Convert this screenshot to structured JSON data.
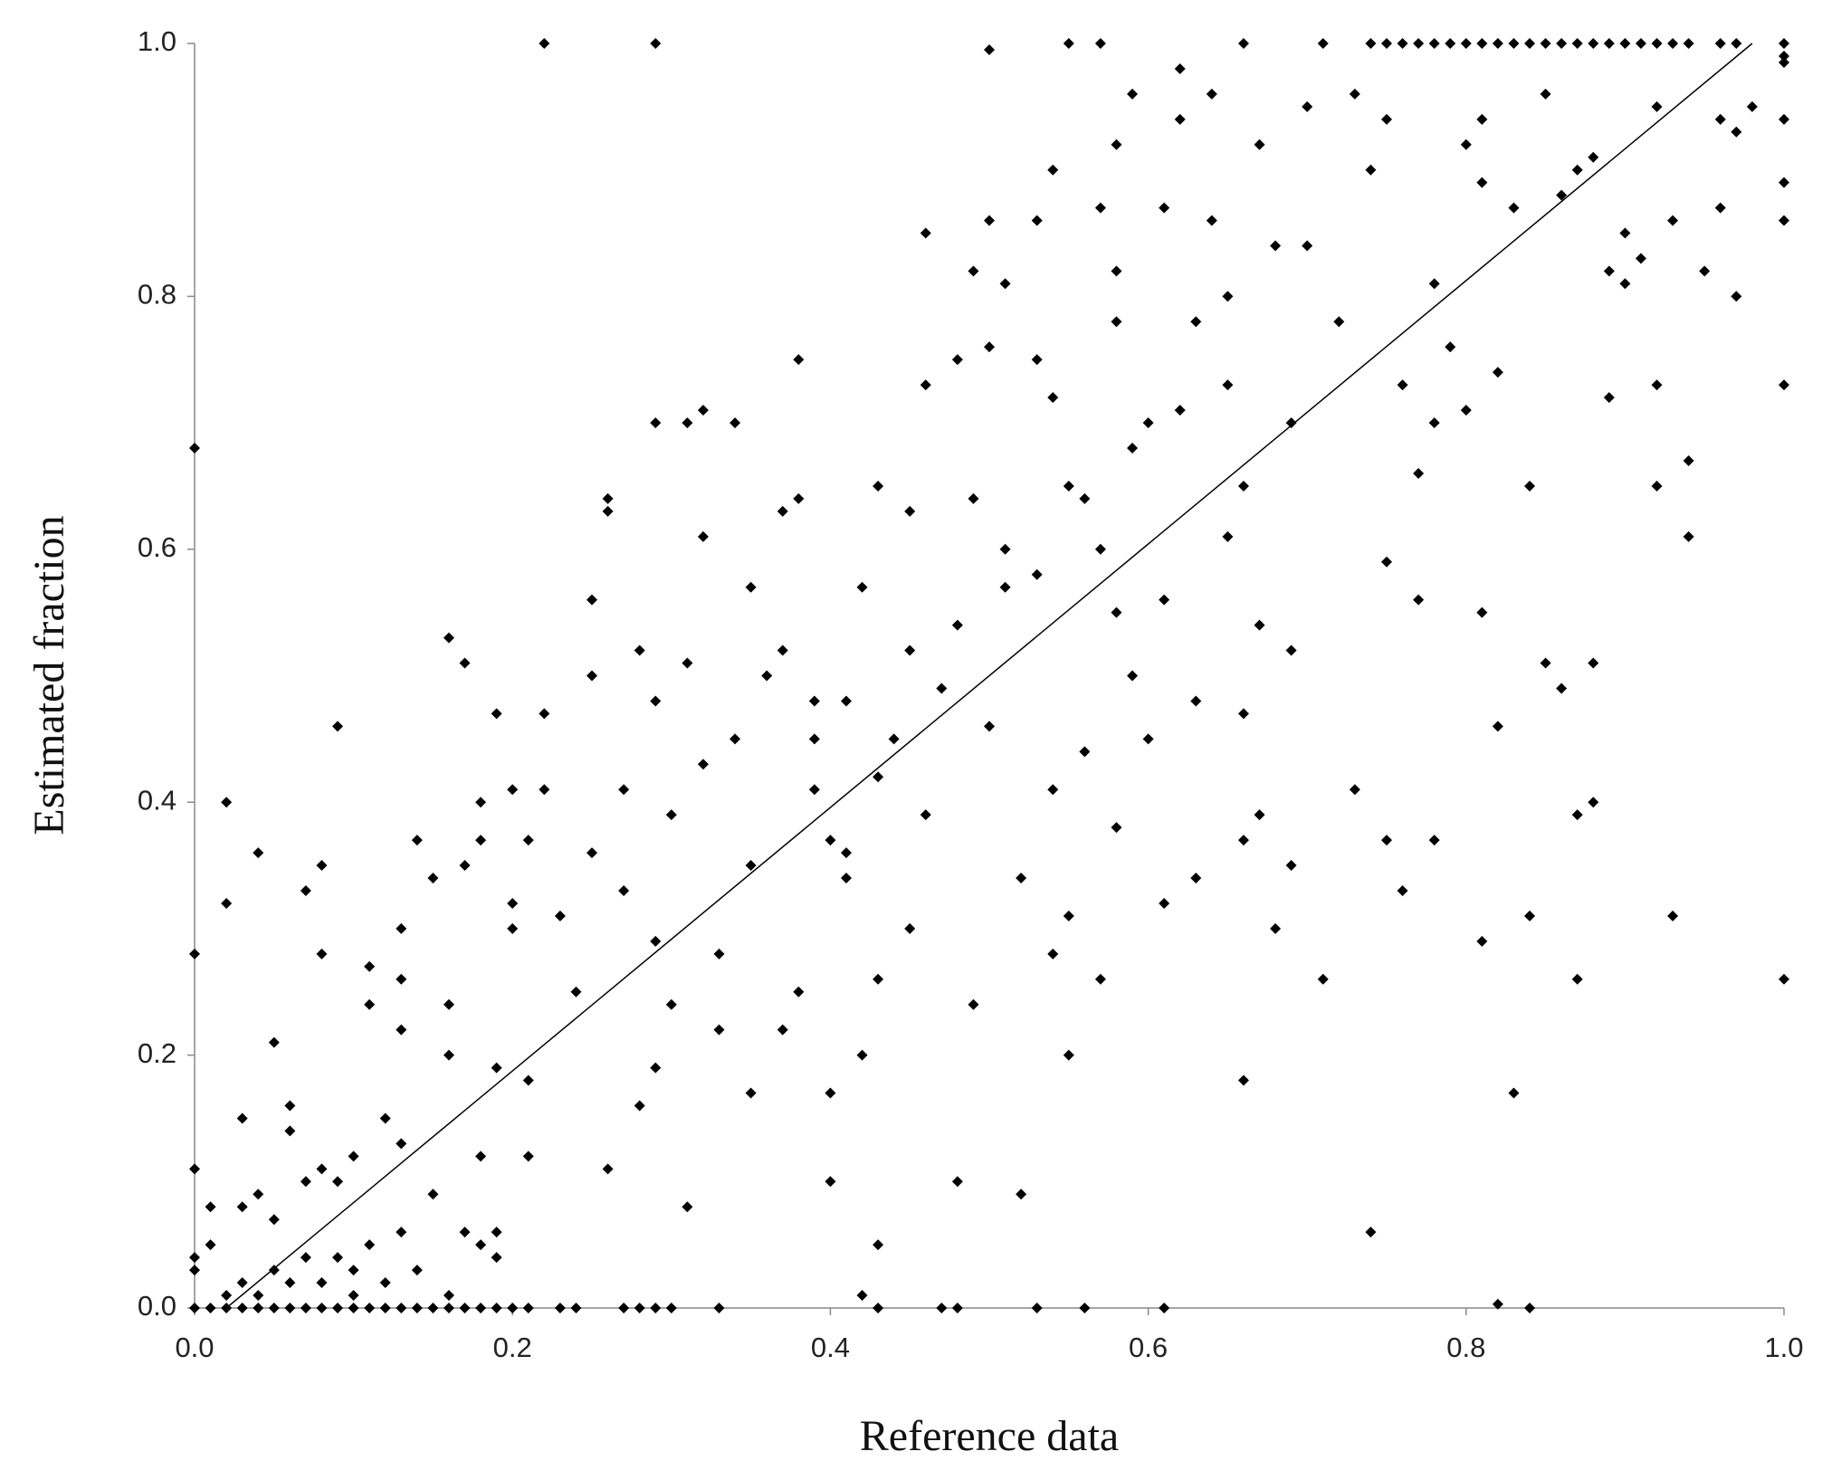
{
  "chart_data": {
    "type": "scatter",
    "x_label": "Reference data",
    "y_label": "Estimated fraction",
    "xlim": [
      0,
      1
    ],
    "ylim": [
      0,
      1
    ],
    "xticks": [
      {
        "value": 0,
        "label": "0.0"
      },
      0.2,
      0.4,
      0.6,
      0.8,
      {
        "value": 1,
        "label": "1.0"
      }
    ],
    "yticks": [
      {
        "value": 0,
        "label": "0.0"
      },
      0.2,
      0.4,
      0.6,
      0.8,
      {
        "value": 1,
        "label": "1.0"
      }
    ],
    "color": "#000000",
    "x": [
      0.22,
      0.29,
      0.5,
      0.55,
      0.57,
      0.66,
      0.71,
      0.75,
      0.76,
      0.74,
      0.77,
      0.78,
      0.79,
      0.8,
      0.81,
      0.82,
      0.83,
      0.84,
      0.85,
      0.86,
      0.87,
      0.88,
      0.89,
      0.9,
      0.91,
      0.92,
      0.93,
      0.94,
      0.96,
      0.97,
      1,
      1,
      1,
      0,
      0.01,
      0.02,
      0.03,
      0.04,
      0.05,
      0.06,
      0.07,
      0.08,
      0.09,
      0.1,
      0.11,
      0.12,
      0.13,
      0.14,
      0.15,
      0.16,
      0.17,
      0.18,
      0.19,
      0.2,
      0.21,
      0.23,
      0.24,
      0.27,
      0.28,
      0.29,
      0.3,
      0.33,
      0.43,
      0.47,
      0.48,
      0.53,
      0.56,
      0.61,
      0.84,
      0.82,
      0,
      0,
      0,
      0,
      0,
      0.01,
      0.01,
      0.02,
      0.02,
      0.03,
      0.03,
      0.04,
      0.04,
      0.05,
      0.05,
      0.06,
      0.06,
      0.07,
      0.07,
      0.08,
      0.08,
      0.08,
      0.09,
      0.09,
      0.1,
      0.1,
      0.11,
      0.11,
      0.12,
      0.13,
      0.13,
      0.13,
      0.13,
      0.14,
      0.15,
      0.15,
      0.16,
      0.16,
      0.16,
      0.17,
      0.17,
      0.18,
      0.18,
      0.18,
      0.19,
      0.19,
      0.19,
      0.2,
      0.2,
      0.2,
      0.21,
      0.21,
      0.21,
      0.22,
      0.22,
      0.23,
      0.24,
      0.25,
      0.25,
      0.25,
      0.26,
      0.26,
      0.26,
      0.27,
      0.27,
      0.28,
      0.28,
      0.29,
      0.29,
      0.29,
      0.29,
      0.3,
      0.3,
      0.31,
      0.31,
      0.31,
      0.32,
      0.32,
      0.32,
      0.33,
      0.33,
      0.34,
      0.34,
      0.35,
      0.35,
      0.35,
      0.36,
      0.37,
      0.37,
      0.37,
      0.38,
      0.38,
      0.38,
      0.39,
      0.39,
      0.39,
      0.4,
      0.4,
      0.4,
      0.41,
      0.41,
      0.41,
      0.42,
      0.42,
      0.42,
      0.43,
      0.43,
      0.43,
      0.43,
      0.44,
      0.45,
      0.45,
      0.45,
      0.46,
      0.46,
      0.46,
      0.47,
      0.48,
      0.48,
      0.48,
      0.49,
      0.49,
      0.49,
      0.5,
      0.5,
      0.5,
      0.51,
      0.51,
      0.51,
      0.52,
      0.52,
      0.53,
      0.53,
      0.53,
      0.54,
      0.54,
      0.54,
      0.54,
      0.55,
      0.55,
      0.55,
      0.56,
      0.56,
      0.57,
      0.57,
      0.57,
      0.58,
      0.58,
      0.58,
      0.58,
      0.58,
      0.59,
      0.59,
      0.59,
      0.6,
      0.6,
      0.61,
      0.61,
      0.61,
      0.62,
      0.62,
      0.62,
      0.63,
      0.63,
      0.63,
      0.64,
      0.64,
      0.65,
      0.65,
      0.65,
      0.66,
      0.66,
      0.66,
      0.66,
      0.67,
      0.67,
      0.67,
      0.68,
      0.68,
      0.69,
      0.69,
      0.69,
      0.7,
      0.7,
      0.71,
      0.72,
      0.73,
      0.73,
      0.74,
      0.74,
      0.75,
      0.75,
      0.75,
      0.76,
      0.76,
      0.77,
      0.77,
      0.78,
      0.78,
      0.78,
      0.79,
      0.8,
      0.8,
      0.81,
      0.81,
      0.81,
      0.81,
      0.82,
      0.82,
      0.83,
      0.83,
      0.84,
      0.84,
      0.85,
      0.85,
      0.86,
      0.86,
      0.87,
      0.87,
      0.87,
      0.88,
      0.88,
      0.88,
      0.89,
      0.89,
      0.9,
      0.9,
      0.91,
      0.92,
      0.92,
      0.92,
      0.93,
      0.93,
      0.94,
      0.94,
      0.95,
      0.96,
      0.96,
      0.97,
      0.97,
      0.98,
      1,
      1,
      1,
      1,
      1,
      0.02,
      0.03,
      0.04,
      0.05,
      0.06,
      0.07,
      0.08,
      0.09,
      0.1,
      0.11,
      0.12,
      0.13,
      0.14,
      0.17,
      0.18,
      0.19,
      0.16
    ],
    "values": [
      1,
      1,
      0.995,
      1,
      1,
      1,
      1,
      1,
      1,
      1,
      1,
      1,
      1,
      1,
      1,
      1,
      1,
      1,
      1,
      1,
      1,
      1,
      1,
      1,
      1,
      1,
      1,
      1,
      1,
      1,
      1,
      0.99,
      0.985,
      0,
      0,
      0,
      0,
      0,
      0,
      0,
      0,
      0,
      0,
      0,
      0,
      0,
      0,
      0,
      0,
      0,
      0,
      0,
      0,
      0,
      0,
      0,
      0,
      0,
      0,
      0,
      0,
      0,
      0,
      0,
      0,
      0,
      0,
      0,
      0,
      0.003,
      0.68,
      0.28,
      0.11,
      0.04,
      0.03,
      0.05,
      0.08,
      0.4,
      0.32,
      0.15,
      0.08,
      0.36,
      0.09,
      0.21,
      0.07,
      0.16,
      0.14,
      0.33,
      0.1,
      0.35,
      0.28,
      0.11,
      0.46,
      0.1,
      0.12,
      0.03,
      0.27,
      0.24,
      0.15,
      0.3,
      0.26,
      0.22,
      0.13,
      0.37,
      0.34,
      0.09,
      0.53,
      0.24,
      0.2,
      0.35,
      0.51,
      0.37,
      0.12,
      0.4,
      0.47,
      0.19,
      0.06,
      0.41,
      0.32,
      0.3,
      0.37,
      0.18,
      0.12,
      0.47,
      0.41,
      0.31,
      0.25,
      0.56,
      0.36,
      0.5,
      0.63,
      0.64,
      0.11,
      0.41,
      0.33,
      0.52,
      0.16,
      0.48,
      0.29,
      0.19,
      0.7,
      0.39,
      0.24,
      0.51,
      0.08,
      0.7,
      0.61,
      0.43,
      0.71,
      0.28,
      0.22,
      0.45,
      0.7,
      0.57,
      0.35,
      0.17,
      0.5,
      0.52,
      0.63,
      0.22,
      0.25,
      0.64,
      0.75,
      0.48,
      0.45,
      0.41,
      0.37,
      0.17,
      0.1,
      0.48,
      0.34,
      0.36,
      0.57,
      0.2,
      0.01,
      0.65,
      0.42,
      0.26,
      0.05,
      0.45,
      0.63,
      0.52,
      0.3,
      0.85,
      0.73,
      0.39,
      0.49,
      0.75,
      0.54,
      0.1,
      0.82,
      0.64,
      0.24,
      0.86,
      0.76,
      0.46,
      0.6,
      0.57,
      0.81,
      0.34,
      0.09,
      0.86,
      0.75,
      0.58,
      0.9,
      0.72,
      0.41,
      0.28,
      0.65,
      0.31,
      0.2,
      0.44,
      0.64,
      0.87,
      0.6,
      0.26,
      0.92,
      0.82,
      0.78,
      0.55,
      0.38,
      0.96,
      0.68,
      0.5,
      0.7,
      0.45,
      0.87,
      0.56,
      0.32,
      0.98,
      0.94,
      0.71,
      0.78,
      0.48,
      0.34,
      0.86,
      0.96,
      0.8,
      0.73,
      0.61,
      0.65,
      0.47,
      0.37,
      0.18,
      0.92,
      0.54,
      0.39,
      0.84,
      0.3,
      0.7,
      0.52,
      0.35,
      0.95,
      0.84,
      0.26,
      0.78,
      0.96,
      0.41,
      0.9,
      0.06,
      0.94,
      0.59,
      0.37,
      0.73,
      0.33,
      0.66,
      0.56,
      0.81,
      0.7,
      0.37,
      0.76,
      0.92,
      0.71,
      0.94,
      0.89,
      0.55,
      0.29,
      0.74,
      0.46,
      0.87,
      0.17,
      0.65,
      0.31,
      0.96,
      0.51,
      0.88,
      0.49,
      0.9,
      0.26,
      0.39,
      0.91,
      0.51,
      0.4,
      0.82,
      0.72,
      0.85,
      0.81,
      0.83,
      0.95,
      0.73,
      0.65,
      0.86,
      0.31,
      0.67,
      0.61,
      0.82,
      0.94,
      0.87,
      0.8,
      0.93,
      0.95,
      0.94,
      0.86,
      0.73,
      0.26,
      0.89,
      0.01,
      0.02,
      0.01,
      0.03,
      0.02,
      0.04,
      0.02,
      0.04,
      0.01,
      0.05,
      0.02,
      0.06,
      0.03,
      0.06,
      0.05,
      0.04,
      0.01
    ],
    "trend_line": {
      "x": [
        0.02,
        0.98
      ],
      "values": [
        0,
        1
      ]
    }
  }
}
